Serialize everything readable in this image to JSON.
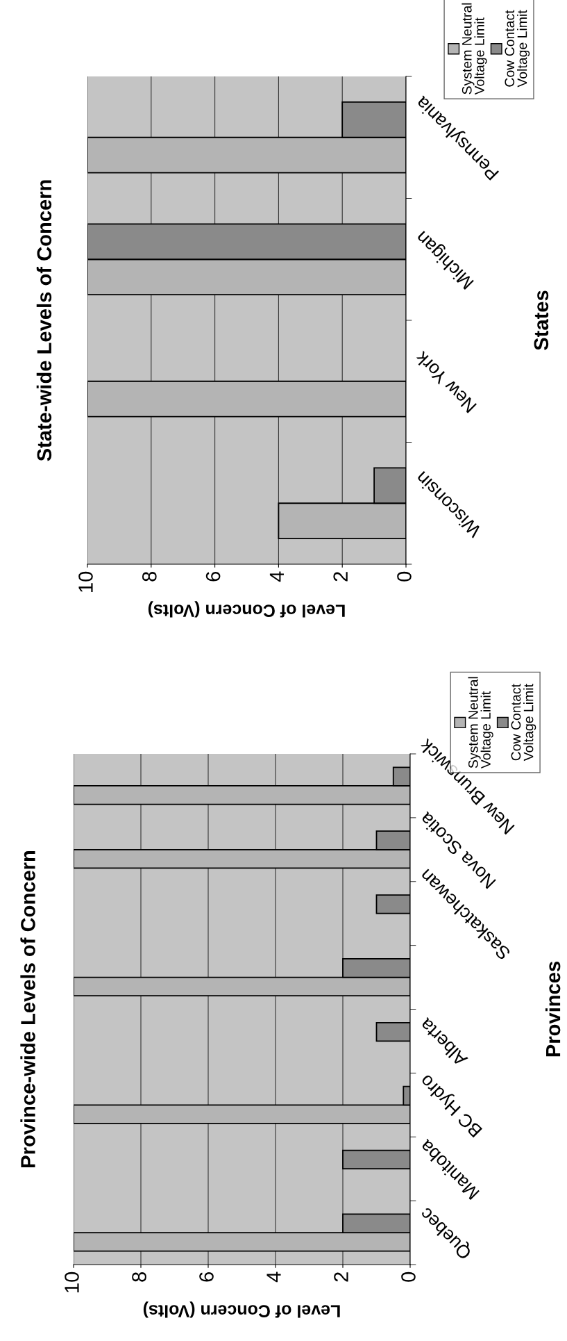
{
  "chart_data": [
    {
      "type": "bar",
      "orientation": "horizontal",
      "title": "State-wide Levels of Concern",
      "xlabel": "Level of Concern (Volts)",
      "ylabel": "States",
      "categories": [
        "Pennsylvania",
        "Michigan",
        "New York",
        "Wisconsin"
      ],
      "series": [
        {
          "name": "System Neutral Voltage Limit",
          "color": "#b4b4b4",
          "values": [
            10,
            10,
            10,
            4
          ]
        },
        {
          "name": "Cow Contact Voltage Limit",
          "color": "#8a8a8a",
          "values": [
            2,
            10,
            null,
            1
          ]
        }
      ],
      "xlim": [
        10,
        0
      ],
      "xticks": [
        10,
        8,
        6,
        4,
        2,
        0
      ],
      "grid": "x",
      "legend": "top right"
    },
    {
      "type": "bar",
      "orientation": "horizontal",
      "title": "Province-wide Levels of Concern",
      "xlabel": "Level of Concern (Volts)",
      "ylabel": "Provinces",
      "categories": [
        "New Brunswick",
        "Nova Scotia",
        "Saskatchewan",
        null,
        "Alberta",
        "BC Hydro",
        "Manitoba",
        "Quebec"
      ],
      "series": [
        {
          "name": "System Neutral Voltage Limit",
          "color": "#b4b4b4",
          "values": [
            10,
            10,
            null,
            10,
            null,
            10,
            null,
            10
          ]
        },
        {
          "name": "Cow Contact Voltage Limit",
          "color": "#8a8a8a",
          "values": [
            0.5,
            1,
            1,
            2,
            1,
            0.2,
            2,
            2
          ]
        }
      ],
      "xlim": [
        10,
        0
      ],
      "xticks": [
        10,
        8,
        6,
        4,
        2,
        0
      ],
      "grid": "x",
      "legend": "top right"
    }
  ]
}
